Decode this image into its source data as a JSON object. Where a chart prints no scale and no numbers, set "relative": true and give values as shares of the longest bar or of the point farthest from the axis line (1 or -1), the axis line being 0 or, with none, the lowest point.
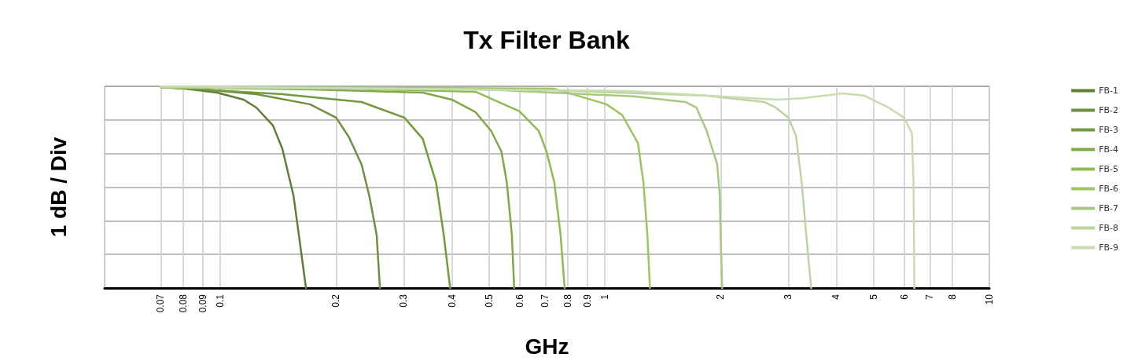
{
  "chart_data": {
    "type": "line",
    "title": "Tx Filter Bank",
    "xlabel": "GHz",
    "ylabel": "1 dB / Div",
    "relative": true,
    "log": "x",
    "grid": true,
    "legend": "right",
    "marker": "none",
    "line_style": "solid",
    "xlim": [
      0.05,
      10
    ],
    "xticks": [
      0.07,
      0.08,
      0.09,
      0.1,
      0.2,
      0.3,
      0.4,
      0.5,
      0.6,
      0.7,
      0.8,
      0.9,
      1,
      2,
      3,
      4,
      5,
      6,
      7,
      8,
      10
    ],
    "series": [
      {
        "name": "FB-1",
        "color": "#5f7f35",
        "x": [
          0.07,
          0.081,
          0.098,
          0.115,
          0.124,
          0.137,
          0.145,
          0.155,
          0.16,
          0.167
        ],
        "values": [
          0.996,
          0.988,
          0.969,
          0.934,
          0.895,
          0.806,
          0.69,
          0.457,
          0.264,
          0
        ]
      },
      {
        "name": "FB-2",
        "color": "#6f9040",
        "x": [
          0.07,
          0.0775,
          0.124,
          0.171,
          0.2,
          0.216,
          0.233,
          0.244,
          0.255,
          0.26
        ],
        "values": [
          0.996,
          0.996,
          0.961,
          0.911,
          0.845,
          0.748,
          0.612,
          0.457,
          0.264,
          0
        ]
      },
      {
        "name": "FB-3",
        "color": "#739a3c",
        "x": [
          0.07,
          0.145,
          0.233,
          0.301,
          0.336,
          0.352,
          0.364,
          0.381,
          0.396
        ],
        "values": [
          0.996,
          0.961,
          0.922,
          0.845,
          0.74,
          0.612,
          0.523,
          0.264,
          0
        ]
      },
      {
        "name": "FB-4",
        "color": "#80a848",
        "x": [
          0.07,
          0.173,
          0.336,
          0.4,
          0.461,
          0.506,
          0.538,
          0.556,
          0.573,
          0.581
        ],
        "values": [
          0.996,
          0.984,
          0.969,
          0.934,
          0.872,
          0.779,
          0.678,
          0.523,
          0.264,
          0
        ]
      },
      {
        "name": "FB-5",
        "color": "#8fbb50",
        "x": [
          0.07,
          0.219,
          0.461,
          0.6,
          0.673,
          0.705,
          0.739,
          0.767,
          0.786
        ],
        "values": [
          0.996,
          0.988,
          0.973,
          0.876,
          0.779,
          0.678,
          0.523,
          0.264,
          0
        ]
      },
      {
        "name": "FB-6",
        "color": "#9cc460",
        "x": [
          0.07,
          0.278,
          0.739,
          1.01,
          1.11,
          1.22,
          1.26,
          1.29,
          1.31
        ],
        "values": [
          0.996,
          0.992,
          0.988,
          0.911,
          0.857,
          0.717,
          0.523,
          0.264,
          0
        ]
      },
      {
        "name": "FB-7",
        "color": "#a8c880",
        "x": [
          0.07,
          0.446,
          1.19,
          1.62,
          1.73,
          1.84,
          1.96,
          1.99,
          2.0,
          2.02
        ],
        "values": [
          0.996,
          0.988,
          0.95,
          0.922,
          0.895,
          0.779,
          0.612,
          0.457,
          0.264,
          0
        ]
      },
      {
        "name": "FB-8",
        "color": "#bcd4a0",
        "x": [
          0.07,
          0.715,
          1.84,
          2.6,
          2.78,
          3.0,
          3.14,
          3.25,
          3.34,
          3.44
        ],
        "values": [
          0.996,
          0.981,
          0.953,
          0.922,
          0.895,
          0.845,
          0.756,
          0.523,
          0.264,
          0
        ]
      },
      {
        "name": "FB-9",
        "color": "#c8dcb0",
        "x": [
          0.07,
          1.15,
          2.82,
          3.29,
          4.17,
          4.74,
          5.46,
          6.0,
          6.29,
          6.35,
          6.38
        ],
        "values": [
          1,
          0.977,
          0.934,
          0.942,
          0.965,
          0.953,
          0.895,
          0.845,
          0.767,
          0.523,
          0
        ]
      }
    ]
  }
}
